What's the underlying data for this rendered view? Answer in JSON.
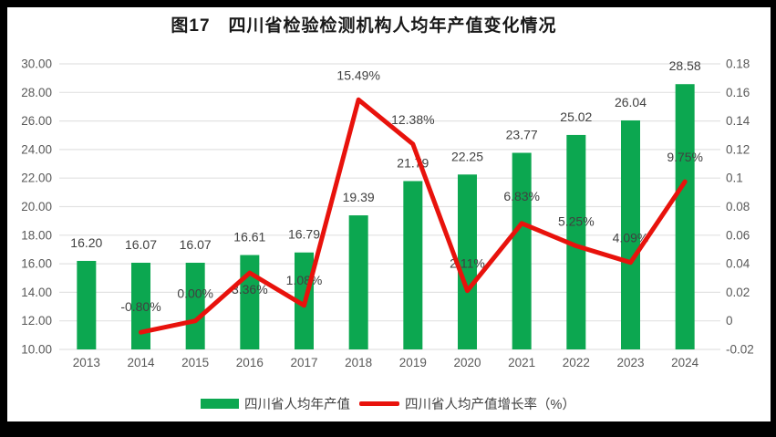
{
  "title": {
    "text": "图17　四川省检验检测机构人均年产值变化情况"
  },
  "legend": {
    "items": [
      {
        "label": "四川省人均年产值",
        "swatch": "bar",
        "color": "#0ca750"
      },
      {
        "label": "四川省人均产值增长率（%）",
        "swatch": "line",
        "color": "#e8120c"
      }
    ],
    "position": "bottom"
  },
  "colors": {
    "bar_green": "#0ca750",
    "line_red": "#e8120c",
    "gridline": "#e2e2e2",
    "axis_text": "#595959",
    "data_label_text": "#404040",
    "frame_border": "#000000",
    "canvas_background": "#ffffff"
  },
  "chart_data": {
    "type": "bar",
    "subtype": "combo-bar-line-dual-axis",
    "title": "图17　四川省检验检测机构人均年产值变化情况",
    "categories": [
      "2013",
      "2014",
      "2015",
      "2016",
      "2017",
      "2018",
      "2019",
      "2020",
      "2021",
      "2022",
      "2023",
      "2024"
    ],
    "series": [
      {
        "name": "四川省人均年产值",
        "type": "bar",
        "axis": "left",
        "color": "#0ca750",
        "values": [
          16.2,
          16.07,
          16.07,
          16.61,
          16.79,
          19.39,
          21.79,
          22.25,
          23.77,
          25.02,
          26.04,
          28.58
        ],
        "labels": [
          "16.20",
          "16.07",
          "16.07",
          "16.61",
          "16.79",
          "19.39",
          "21.79",
          "22.25",
          "23.77",
          "25.02",
          "26.04",
          "28.58"
        ]
      },
      {
        "name": "四川省人均产值增长率（%）",
        "type": "line",
        "axis": "right",
        "color": "#e8120c",
        "values": [
          null,
          -0.008,
          0.0,
          0.0336,
          0.0108,
          0.1549,
          0.1238,
          0.0211,
          0.0683,
          0.0525,
          0.0409,
          0.0975
        ],
        "labels": [
          "",
          "-0.80%",
          "0.00%",
          "3.36%",
          "1.08%",
          "15.49%",
          "12.38%",
          "2.11%",
          "6.83%",
          "5.25%",
          "4.09%",
          "9.75%"
        ],
        "label_dy": [
          0,
          -28,
          -30,
          18,
          -28,
          -27,
          -27,
          -30,
          -30,
          -27,
          -27,
          -27
        ]
      }
    ],
    "left_axis": {
      "min": 10,
      "max": 30,
      "step": 2,
      "tick_labels": [
        "30.00",
        "28.00",
        "26.00",
        "24.00",
        "22.00",
        "20.00",
        "18.00",
        "16.00",
        "14.00",
        "12.00",
        "10.00"
      ]
    },
    "right_axis": {
      "min": -0.02,
      "max": 0.18,
      "step": 0.02,
      "tick_labels": [
        "0.18",
        "0.16",
        "0.14",
        "0.12",
        "0.1",
        "0.08",
        "0.06",
        "0.04",
        "0.02",
        "0",
        "-0.02"
      ]
    },
    "grid": true,
    "legend_position": "bottom",
    "xlabel": "",
    "ylabel": ""
  }
}
